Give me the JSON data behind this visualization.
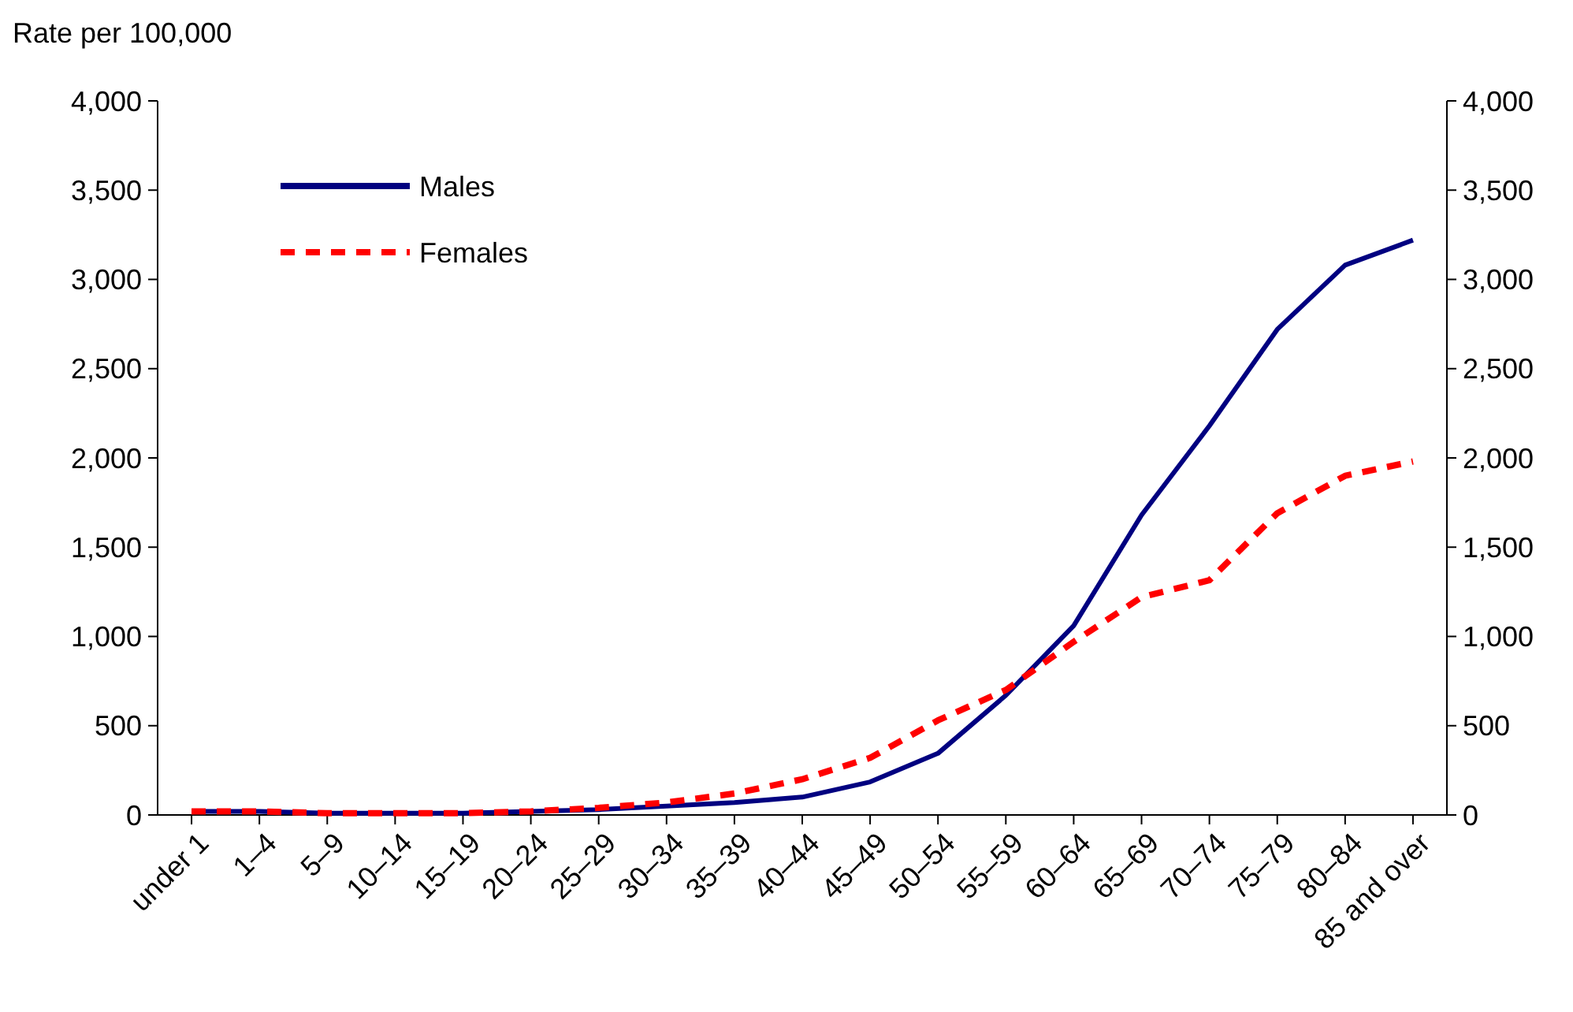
{
  "chart_data": {
    "type": "line",
    "ylabel": "Rate per 100,000",
    "categories": [
      "under 1",
      "1–4",
      "5–9",
      "10–14",
      "15–19",
      "20–24",
      "25–29",
      "30–34",
      "35–39",
      "40–44",
      "45–49",
      "50–54",
      "55–59",
      "60–64",
      "65–69",
      "70–74",
      "75–79",
      "80–84",
      "85 and over"
    ],
    "series": [
      {
        "name": "Males",
        "color": "#000080",
        "line_style": "solid",
        "values": [
          20,
          20,
          10,
          10,
          10,
          20,
          30,
          50,
          70,
          100,
          185,
          345,
          670,
          1060,
          1680,
          2180,
          2720,
          3080,
          3220
        ]
      },
      {
        "name": "Females",
        "color": "#ff0000",
        "line_style": "dashed",
        "values": [
          20,
          20,
          10,
          10,
          10,
          20,
          40,
          70,
          120,
          200,
          320,
          530,
          700,
          970,
          1220,
          1315,
          1690,
          1900,
          1980
        ]
      }
    ],
    "ylim": [
      0,
      4000
    ],
    "yticks": [
      {
        "value": 0,
        "label": "0"
      },
      {
        "value": 500,
        "label": "500"
      },
      {
        "value": 1000,
        "label": "1,000"
      },
      {
        "value": 1500,
        "label": "1,500"
      },
      {
        "value": 2000,
        "label": "2,000"
      },
      {
        "value": 2500,
        "label": "2,500"
      },
      {
        "value": 3000,
        "label": "3,000"
      },
      {
        "value": 3500,
        "label": "3,500"
      },
      {
        "value": 4000,
        "label": "4,000"
      }
    ],
    "y2lim": [
      0,
      4000
    ],
    "y2ticks": [
      {
        "value": 0,
        "label": "0"
      },
      {
        "value": 500,
        "label": "500"
      },
      {
        "value": 1000,
        "label": "1,000"
      },
      {
        "value": 1500,
        "label": "1,500"
      },
      {
        "value": 2000,
        "label": "2,000"
      },
      {
        "value": 2500,
        "label": "2,500"
      },
      {
        "value": 3000,
        "label": "3,000"
      },
      {
        "value": 3500,
        "label": "3,500"
      },
      {
        "value": 4000,
        "label": "4,000"
      }
    ],
    "grid": false,
    "legend": "top left"
  }
}
